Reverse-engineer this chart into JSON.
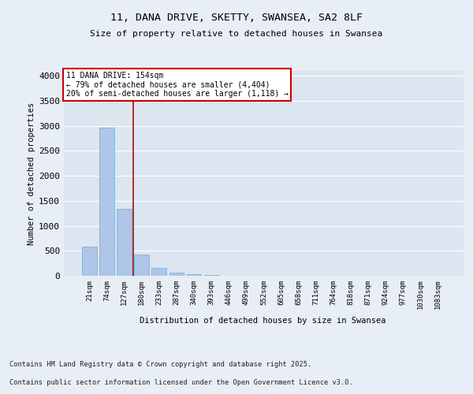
{
  "title1": "11, DANA DRIVE, SKETTY, SWANSEA, SA2 8LF",
  "title2": "Size of property relative to detached houses in Swansea",
  "xlabel": "Distribution of detached houses by size in Swansea",
  "ylabel": "Number of detached properties",
  "footer1": "Contains HM Land Registry data © Crown copyright and database right 2025.",
  "footer2": "Contains public sector information licensed under the Open Government Licence v3.0.",
  "categories": [
    "21sqm",
    "74sqm",
    "127sqm",
    "180sqm",
    "233sqm",
    "287sqm",
    "340sqm",
    "393sqm",
    "446sqm",
    "499sqm",
    "552sqm",
    "605sqm",
    "658sqm",
    "711sqm",
    "764sqm",
    "818sqm",
    "871sqm",
    "924sqm",
    "977sqm",
    "1030sqm",
    "1083sqm"
  ],
  "values": [
    580,
    2970,
    1340,
    430,
    155,
    65,
    30,
    20,
    0,
    0,
    0,
    0,
    0,
    0,
    0,
    0,
    0,
    0,
    0,
    0,
    0
  ],
  "bar_color": "#aec6e8",
  "bar_edge_color": "#6baed6",
  "vline_x": 2.5,
  "vline_color": "#cc0000",
  "annotation_title": "11 DANA DRIVE: 154sqm",
  "annotation_line1": "← 79% of detached houses are smaller (4,404)",
  "annotation_line2": "20% of semi-detached houses are larger (1,118) →",
  "annotation_box_color": "#cc0000",
  "annotation_text_color": "#000000",
  "ylim": [
    0,
    4100
  ],
  "yticks": [
    0,
    500,
    1000,
    1500,
    2000,
    2500,
    3000,
    3500,
    4000
  ],
  "bg_color": "#e8eef5",
  "plot_bg_color": "#dce6f0",
  "grid_color": "#ffffff"
}
